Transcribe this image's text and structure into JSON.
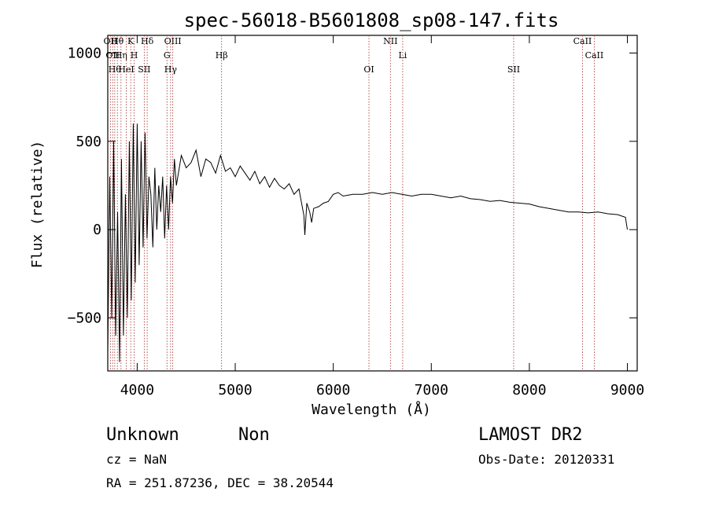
{
  "chart_data": {
    "type": "line",
    "title": "spec-56018-B5601808_sp08-147.fits",
    "xlabel": "Wavelength (Å)",
    "ylabel": "Flux (relative)",
    "xlim": [
      3700,
      9100
    ],
    "ylim": [
      -800,
      1100
    ],
    "x_ticks": [
      {
        "value": 4000,
        "label": "4000"
      },
      {
        "value": 5000,
        "label": "5000"
      },
      {
        "value": 6000,
        "label": "6000"
      },
      {
        "value": 7000,
        "label": "7000"
      },
      {
        "value": 8000,
        "label": "8000"
      },
      {
        "value": 9000,
        "label": "9000"
      }
    ],
    "y_ticks": [
      {
        "value": -500,
        "label": "−500"
      },
      {
        "value": 0,
        "label": "0"
      },
      {
        "value": 500,
        "label": "500"
      },
      {
        "value": 1000,
        "label": "1000"
      }
    ],
    "series": [
      {
        "color": "#000000",
        "x": [
          3700,
          3720,
          3740,
          3760,
          3780,
          3800,
          3820,
          3840,
          3860,
          3880,
          3900,
          3920,
          3940,
          3960,
          3980,
          4000,
          4020,
          4040,
          4060,
          4080,
          4100,
          4120,
          4140,
          4160,
          4180,
          4200,
          4220,
          4240,
          4260,
          4280,
          4300,
          4320,
          4340,
          4360,
          4380,
          4400,
          4450,
          4500,
          4550,
          4600,
          4650,
          4700,
          4750,
          4800,
          4850,
          4900,
          4950,
          5000,
          5050,
          5100,
          5150,
          5200,
          5250,
          5300,
          5350,
          5400,
          5450,
          5500,
          5550,
          5600,
          5650,
          5700,
          5710,
          5730,
          5760,
          5780,
          5800,
          5850,
          5900,
          5950,
          6000,
          6050,
          6100,
          6200,
          6300,
          6400,
          6500,
          6600,
          6700,
          6800,
          6900,
          7000,
          7100,
          7200,
          7300,
          7400,
          7500,
          7600,
          7700,
          7800,
          7900,
          8000,
          8100,
          8200,
          8300,
          8400,
          8500,
          8600,
          8700,
          8800,
          8900,
          8980,
          9000
        ],
        "y": [
          -700,
          300,
          -500,
          500,
          -600,
          100,
          -750,
          400,
          -600,
          200,
          -500,
          500,
          -400,
          600,
          -300,
          600,
          -200,
          500,
          -100,
          550,
          -50,
          300,
          200,
          -100,
          350,
          0,
          250,
          100,
          300,
          -50,
          250,
          0,
          300,
          150,
          400,
          250,
          420,
          350,
          380,
          450,
          300,
          400,
          380,
          320,
          420,
          330,
          350,
          300,
          360,
          320,
          280,
          330,
          260,
          300,
          240,
          290,
          250,
          230,
          260,
          200,
          230,
          80,
          -30,
          150,
          100,
          40,
          120,
          130,
          150,
          160,
          200,
          210,
          190,
          200,
          200,
          210,
          200,
          210,
          200,
          190,
          200,
          200,
          190,
          180,
          190,
          175,
          170,
          160,
          165,
          155,
          150,
          145,
          130,
          120,
          110,
          100,
          100,
          95,
          100,
          90,
          85,
          70,
          0
        ]
      }
    ],
    "lines": [
      {
        "x": 3727,
        "label": "OII"
      },
      {
        "x": 3750,
        "label": "OII"
      },
      {
        "x": 3771,
        "label": "Hθ"
      },
      {
        "x": 3798,
        "label": "Hθ"
      },
      {
        "x": 3835,
        "label": "Hη"
      },
      {
        "x": 3889,
        "label": "HeI"
      },
      {
        "x": 3934,
        "label": "K"
      },
      {
        "x": 3969,
        "label": "H"
      },
      {
        "x": 4072,
        "label": "SII"
      },
      {
        "x": 4102,
        "label": "Hδ"
      },
      {
        "x": 4304,
        "label": "G"
      },
      {
        "x": 4341,
        "label": "Hγ"
      },
      {
        "x": 4363,
        "label": "OIII"
      },
      {
        "x": 4861,
        "label": "Hβ"
      },
      {
        "x": 6364,
        "label": "OI"
      },
      {
        "x": 6583,
        "label": "NII"
      },
      {
        "x": 6708,
        "label": "Li"
      },
      {
        "x": 7840,
        "label": "SII"
      },
      {
        "x": 8542,
        "label": "CaII"
      },
      {
        "x": 8662,
        "label": "CaII"
      }
    ]
  },
  "info": {
    "class": "Unknown",
    "subclass": "Non",
    "survey": "LAMOST DR2",
    "cz": "cz = NaN",
    "obsdate": "Obs-Date: 20120331",
    "radec": "RA = 251.87236, DEC =  38.20544"
  }
}
